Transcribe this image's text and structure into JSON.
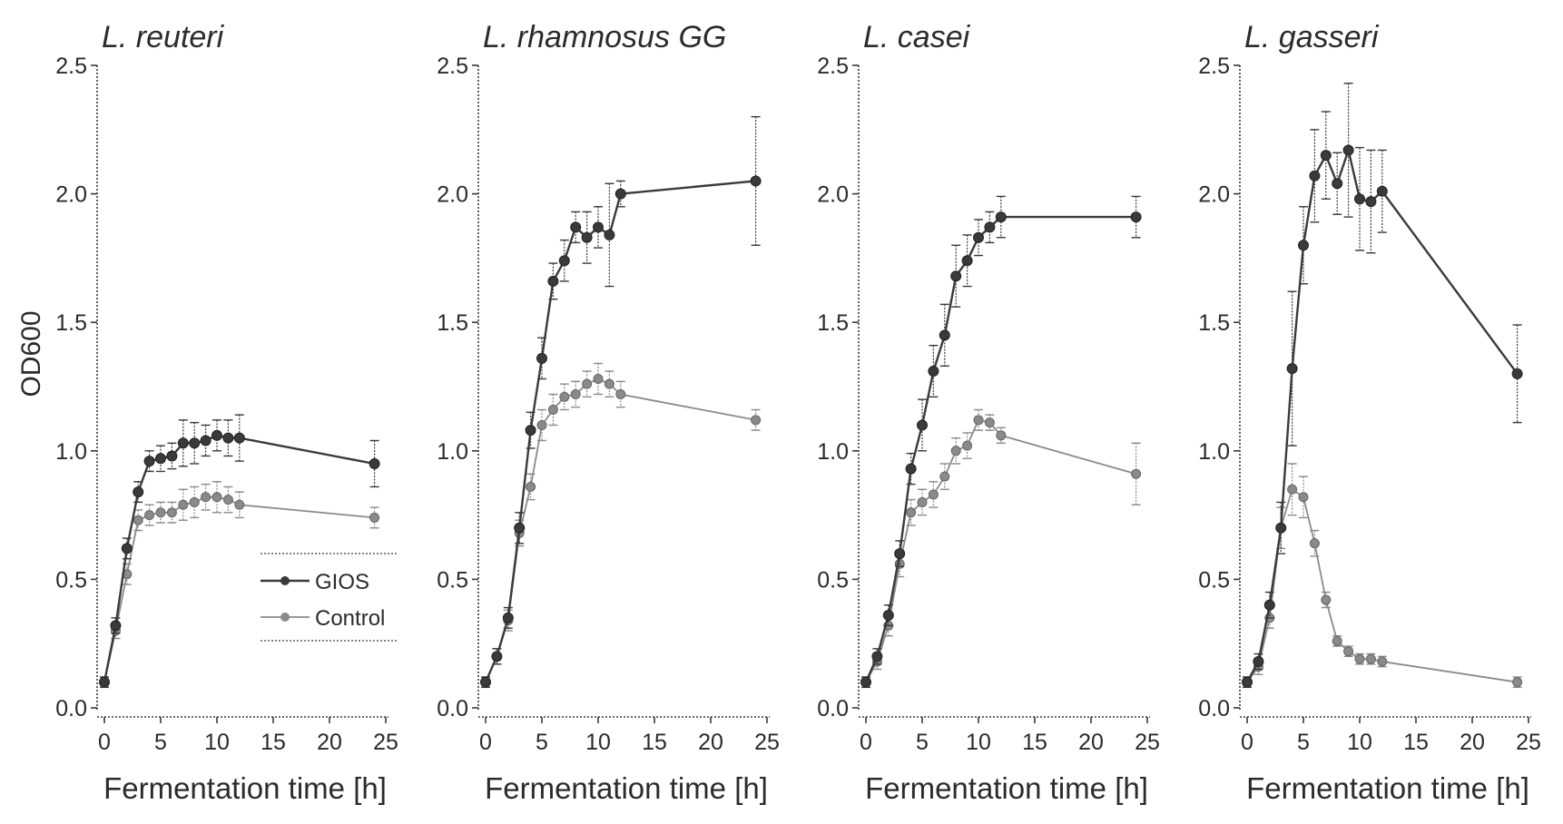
{
  "figure": {
    "ylabel": "OD600"
  },
  "legend": {
    "entries": [
      "GIOS",
      "Control"
    ],
    "panel": 0,
    "placement": "lower-right"
  },
  "colors": {
    "gios": "#3a3a3a",
    "control": "#8a8a8a",
    "axis": "#3a3a3a",
    "text": "#2b2b2b"
  },
  "chart_data": [
    {
      "type": "line",
      "title": "L. reuteri",
      "xlabel": "Fermentation time [h]",
      "ylabel": "OD600",
      "xlim": [
        0,
        25
      ],
      "ylim": [
        0,
        2.5
      ],
      "xticks": [
        0,
        5,
        10,
        15,
        20,
        25
      ],
      "yticks": [
        "0.0",
        "0.5",
        "1.0",
        "1.5",
        "2.0",
        "2.5"
      ],
      "series": [
        {
          "name": "GIOS",
          "x": [
            0,
            1,
            2,
            3,
            4,
            5,
            6,
            7,
            8,
            9,
            10,
            11,
            12,
            24
          ],
          "y": [
            0.1,
            0.32,
            0.62,
            0.84,
            0.96,
            0.97,
            0.98,
            1.03,
            1.03,
            1.04,
            1.06,
            1.05,
            1.05,
            0.95
          ],
          "err": [
            0.02,
            0.03,
            0.04,
            0.04,
            0.04,
            0.05,
            0.05,
            0.09,
            0.08,
            0.06,
            0.06,
            0.07,
            0.09,
            0.09
          ]
        },
        {
          "name": "Control",
          "x": [
            0,
            1,
            2,
            3,
            4,
            5,
            6,
            7,
            8,
            9,
            10,
            11,
            12,
            24
          ],
          "y": [
            0.1,
            0.3,
            0.52,
            0.73,
            0.75,
            0.76,
            0.76,
            0.79,
            0.8,
            0.82,
            0.82,
            0.81,
            0.79,
            0.74
          ],
          "err": [
            0.02,
            0.03,
            0.04,
            0.04,
            0.04,
            0.04,
            0.04,
            0.06,
            0.06,
            0.05,
            0.06,
            0.05,
            0.05,
            0.04
          ]
        }
      ]
    },
    {
      "type": "line",
      "title": "L. rhamnosus GG",
      "xlabel": "Fermentation time [h]",
      "ylabel": "",
      "xlim": [
        0,
        25
      ],
      "ylim": [
        0,
        2.5
      ],
      "xticks": [
        0,
        5,
        10,
        15,
        20,
        25
      ],
      "yticks": [
        "0.0",
        "0.5",
        "1.0",
        "1.5",
        "2.0",
        "2.5"
      ],
      "series": [
        {
          "name": "GIOS",
          "x": [
            0,
            1,
            2,
            3,
            4,
            5,
            6,
            7,
            8,
            9,
            10,
            11,
            12,
            24
          ],
          "y": [
            0.1,
            0.2,
            0.35,
            0.7,
            1.08,
            1.36,
            1.66,
            1.74,
            1.87,
            1.83,
            1.87,
            1.84,
            2.0,
            2.05
          ],
          "err": [
            0.02,
            0.03,
            0.04,
            0.06,
            0.07,
            0.08,
            0.07,
            0.08,
            0.06,
            0.1,
            0.08,
            0.2,
            0.05,
            0.25
          ]
        },
        {
          "name": "Control",
          "x": [
            0,
            1,
            2,
            3,
            4,
            5,
            6,
            7,
            8,
            9,
            10,
            11,
            12,
            24
          ],
          "y": [
            0.1,
            0.2,
            0.34,
            0.68,
            0.86,
            1.1,
            1.16,
            1.21,
            1.22,
            1.26,
            1.28,
            1.26,
            1.22,
            1.12
          ],
          "err": [
            0.02,
            0.03,
            0.04,
            0.05,
            0.05,
            0.06,
            0.06,
            0.05,
            0.05,
            0.05,
            0.06,
            0.05,
            0.05,
            0.04
          ]
        }
      ]
    },
    {
      "type": "line",
      "title": "L. casei",
      "xlabel": "Fermentation time [h]",
      "ylabel": "",
      "xlim": [
        0,
        25
      ],
      "ylim": [
        0,
        2.5
      ],
      "xticks": [
        0,
        5,
        10,
        15,
        20,
        25
      ],
      "yticks": [
        "0.0",
        "0.5",
        "1.0",
        "1.5",
        "2.0",
        "2.5"
      ],
      "series": [
        {
          "name": "GIOS",
          "x": [
            0,
            1,
            2,
            3,
            4,
            5,
            6,
            7,
            8,
            9,
            10,
            11,
            12,
            24
          ],
          "y": [
            0.1,
            0.2,
            0.36,
            0.6,
            0.93,
            1.1,
            1.31,
            1.45,
            1.68,
            1.74,
            1.83,
            1.87,
            1.91,
            1.91
          ],
          "err": [
            0.02,
            0.03,
            0.04,
            0.05,
            0.06,
            0.1,
            0.1,
            0.12,
            0.12,
            0.1,
            0.07,
            0.06,
            0.08,
            0.08
          ]
        },
        {
          "name": "Control",
          "x": [
            0,
            1,
            2,
            3,
            4,
            5,
            6,
            7,
            8,
            9,
            10,
            11,
            12,
            24
          ],
          "y": [
            0.1,
            0.18,
            0.32,
            0.56,
            0.76,
            0.8,
            0.83,
            0.9,
            1.0,
            1.02,
            1.12,
            1.11,
            1.06,
            0.91
          ],
          "err": [
            0.02,
            0.03,
            0.04,
            0.05,
            0.05,
            0.05,
            0.05,
            0.05,
            0.05,
            0.05,
            0.04,
            0.03,
            0.03,
            0.12
          ]
        }
      ]
    },
    {
      "type": "line",
      "title": "L. gasseri",
      "xlabel": "Fermentation time [h]",
      "ylabel": "",
      "xlim": [
        0,
        25
      ],
      "ylim": [
        0,
        2.5
      ],
      "xticks": [
        0,
        5,
        10,
        15,
        20,
        25
      ],
      "yticks": [
        "0.0",
        "0.5",
        "1.0",
        "1.5",
        "2.0",
        "2.5"
      ],
      "series": [
        {
          "name": "GIOS",
          "x": [
            0,
            1,
            2,
            3,
            4,
            5,
            6,
            7,
            8,
            9,
            10,
            11,
            12,
            24
          ],
          "y": [
            0.1,
            0.18,
            0.4,
            0.7,
            1.32,
            1.8,
            2.07,
            2.15,
            2.04,
            2.17,
            1.98,
            1.97,
            2.01,
            1.3
          ],
          "err": [
            0.02,
            0.03,
            0.05,
            0.1,
            0.3,
            0.15,
            0.18,
            0.17,
            0.12,
            0.26,
            0.2,
            0.2,
            0.16,
            0.19
          ]
        },
        {
          "name": "Control",
          "x": [
            0,
            1,
            2,
            3,
            4,
            5,
            6,
            7,
            8,
            9,
            10,
            11,
            12,
            24
          ],
          "y": [
            0.1,
            0.16,
            0.35,
            0.7,
            0.85,
            0.82,
            0.64,
            0.42,
            0.26,
            0.22,
            0.19,
            0.19,
            0.18,
            0.1
          ],
          "err": [
            0.02,
            0.03,
            0.04,
            0.08,
            0.1,
            0.08,
            0.05,
            0.03,
            0.02,
            0.02,
            0.02,
            0.02,
            0.02,
            0.02
          ]
        }
      ]
    }
  ]
}
